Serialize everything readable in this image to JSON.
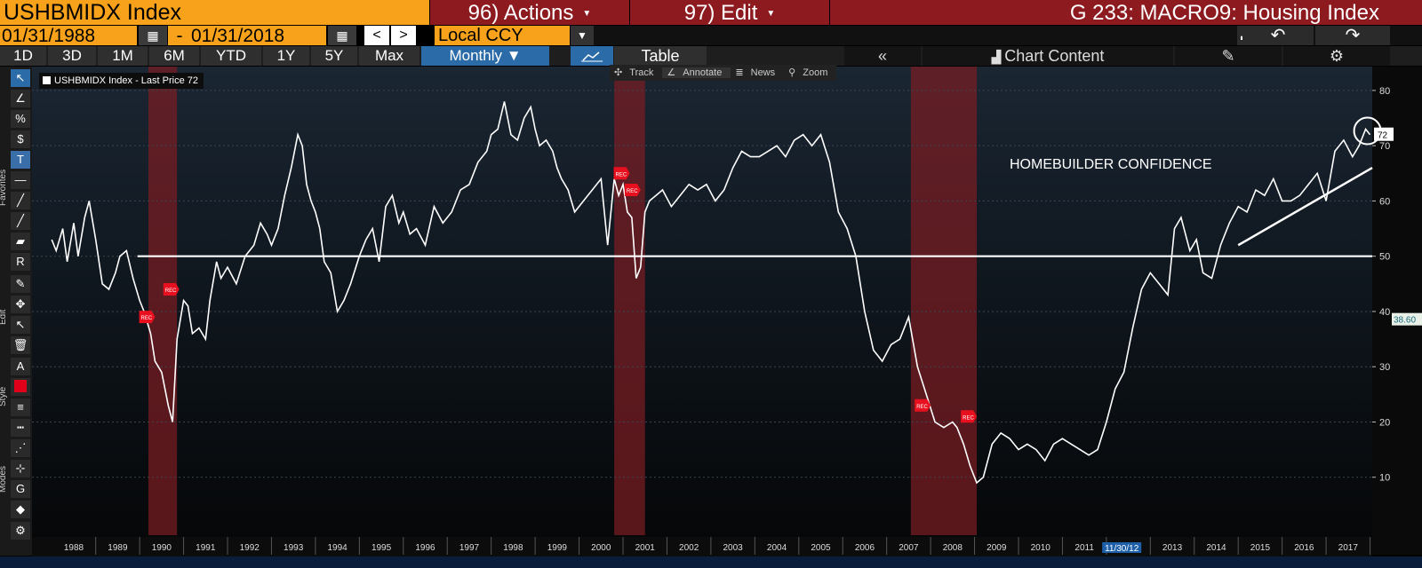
{
  "header": {
    "ticker": "USHBMIDX Index",
    "actions_label": "96) Actions",
    "edit_label": "97) Edit",
    "page_title": "G 233: MACRO9: Housing Index"
  },
  "date_range": {
    "start": "01/31/1988",
    "separator": "-",
    "end": "01/31/2018",
    "nav_prev": "<",
    "nav_next": ">"
  },
  "currency": {
    "value": "Local CCY"
  },
  "periods": [
    "1D",
    "3D",
    "1M",
    "6M",
    "YTD",
    "1Y",
    "5Y",
    "Max"
  ],
  "frequency": {
    "value": "Monthly ▼"
  },
  "view_tabs": {
    "table": "Table",
    "collapse": "«",
    "chart_content": "Chart Content"
  },
  "chart_tools": [
    "Track",
    "Annotate",
    "News",
    "Zoom"
  ],
  "left_toolbar_sections": [
    "Favorites",
    "Edit",
    "Style",
    "Modes"
  ],
  "chart_data": {
    "type": "line",
    "legend": "USHBMIDX Index - Last Price 72",
    "annotation": "HOMEBUILDER CONFIDENCE",
    "last_price_label": "72",
    "ref_value_label": "38.60",
    "crosshair_date": "11/30/12",
    "x_ticks": [
      "1988",
      "1989",
      "1990",
      "1991",
      "1992",
      "1993",
      "1994",
      "1995",
      "1996",
      "1997",
      "1998",
      "1999",
      "2000",
      "2001",
      "2002",
      "2003",
      "2004",
      "2005",
      "2006",
      "2007",
      "2008",
      "2009",
      "2010",
      "2011",
      "2012",
      "2013",
      "2014",
      "2015",
      "2016",
      "2017"
    ],
    "y_ticks": [
      10,
      20,
      30,
      40,
      50,
      60,
      70,
      80
    ],
    "ylim": [
      0,
      84
    ],
    "xlim": [
      1987.55,
      2018.05
    ],
    "horizontal_line": 50,
    "trend_line": [
      [
        2015.0,
        52
      ],
      [
        2018.05,
        66
      ]
    ],
    "recessions": [
      [
        1990.2,
        1990.85
      ],
      [
        2000.8,
        2001.5
      ],
      [
        2007.55,
        2009.05
      ]
    ],
    "rec_marker_label": "REC",
    "rec_markers": [
      [
        1990.15,
        39
      ],
      [
        1990.7,
        44
      ],
      [
        2000.95,
        65
      ],
      [
        2001.2,
        62
      ],
      [
        2007.8,
        23
      ],
      [
        2008.85,
        21
      ]
    ],
    "series": [
      {
        "x": [
          1988.0,
          1988.1,
          1988.25,
          1988.35,
          1988.5,
          1988.6,
          1988.75,
          1988.85,
          1989.0,
          1989.15,
          1989.3,
          1989.45,
          1989.55,
          1989.7,
          1989.85,
          1990.0,
          1990.1,
          1990.25,
          1990.35,
          1990.5,
          1990.65,
          1990.75,
          1990.85,
          1991.0,
          1991.1,
          1991.2,
          1991.35,
          1991.5,
          1991.6,
          1991.75,
          1991.85,
          1992.0,
          1992.2,
          1992.4,
          1992.6,
          1992.75,
          1992.9,
          1993.0,
          1993.15,
          1993.3,
          1993.45,
          1993.6,
          1993.7,
          1993.8,
          1993.9,
          1994.0,
          1994.1,
          1994.2,
          1994.35,
          1994.5,
          1994.65,
          1994.8,
          1995.0,
          1995.15,
          1995.3,
          1995.45,
          1995.6,
          1995.75,
          1995.9,
          1996.0,
          1996.15,
          1996.3,
          1996.5,
          1996.7,
          1996.9,
          1997.1,
          1997.3,
          1997.5,
          1997.7,
          1997.9,
          1998.0,
          1998.15,
          1998.3,
          1998.45,
          1998.6,
          1998.75,
          1998.9,
          1999.0,
          1999.1,
          1999.25,
          1999.4,
          1999.5,
          1999.6,
          1999.75,
          1999.9,
          2000.1,
          2000.3,
          2000.5,
          2000.65,
          2000.8,
          2000.9,
          2001.0,
          2001.1,
          2001.2,
          2001.3,
          2001.4,
          2001.5,
          2001.6,
          2001.75,
          2001.9,
          2002.1,
          2002.3,
          2002.5,
          2002.7,
          2002.9,
          2003.1,
          2003.3,
          2003.5,
          2003.7,
          2003.9,
          2004.1,
          2004.3,
          2004.5,
          2004.7,
          2004.9,
          2005.1,
          2005.3,
          2005.5,
          2005.7,
          2005.9,
          2006.1,
          2006.3,
          2006.5,
          2006.7,
          2006.9,
          2007.1,
          2007.3,
          2007.5,
          2007.7,
          2007.9,
          2008.1,
          2008.3,
          2008.5,
          2008.6,
          2008.75,
          2008.9,
          2009.05,
          2009.2,
          2009.4,
          2009.6,
          2009.8,
          2010.0,
          2010.2,
          2010.4,
          2010.6,
          2010.8,
          2011.0,
          2011.2,
          2011.4,
          2011.6,
          2011.8,
          2012.0,
          2012.2,
          2012.4,
          2012.6,
          2012.8,
          2013.0,
          2013.2,
          2013.4,
          2013.55,
          2013.7,
          2013.9,
          2014.05,
          2014.2,
          2014.4,
          2014.6,
          2014.8,
          2015.0,
          2015.2,
          2015.4,
          2015.6,
          2015.8,
          2016.0,
          2016.2,
          2016.4,
          2016.6,
          2016.8,
          2017.0,
          2017.2,
          2017.4,
          2017.6,
          2017.75,
          2017.9,
          2018.0
        ],
        "values": [
          53,
          51,
          55,
          49,
          56,
          50,
          57,
          60,
          53,
          45,
          44,
          47,
          50,
          51,
          46,
          42,
          40,
          36,
          31,
          29,
          23,
          20,
          35,
          42,
          41,
          36,
          37,
          35,
          42,
          49,
          46,
          48,
          45,
          50,
          52,
          56,
          54,
          52,
          55,
          61,
          66,
          72,
          70,
          63,
          60,
          58,
          55,
          49,
          47,
          40,
          42,
          45,
          50,
          53,
          55,
          49,
          59,
          61,
          56,
          58,
          54,
          55,
          52,
          59,
          56,
          58,
          62,
          63,
          67,
          69,
          72,
          73,
          78,
          72,
          71,
          75,
          77,
          73,
          70,
          71,
          69,
          66,
          64,
          62,
          58,
          60,
          62,
          64,
          52,
          64,
          61,
          63,
          58,
          57,
          46,
          48,
          58,
          60,
          61,
          62,
          59,
          61,
          63,
          62,
          63,
          60,
          62,
          66,
          69,
          68,
          68,
          69,
          70,
          68,
          71,
          72,
          70,
          72,
          67,
          58,
          55,
          50,
          40,
          33,
          31,
          34,
          35,
          39,
          30,
          25,
          20,
          19,
          20,
          19,
          16,
          12,
          9,
          10,
          16,
          18,
          17,
          15,
          16,
          15,
          13,
          16,
          17,
          16,
          15,
          14,
          15,
          20,
          26,
          29,
          37,
          44,
          47,
          45,
          43,
          55,
          57,
          51,
          53,
          47,
          46,
          52,
          56,
          59,
          58,
          62,
          61,
          64,
          60,
          60,
          61,
          63,
          65,
          60,
          69,
          71,
          68,
          70,
          73,
          72
        ],
        "color": "#ffffff"
      }
    ]
  }
}
